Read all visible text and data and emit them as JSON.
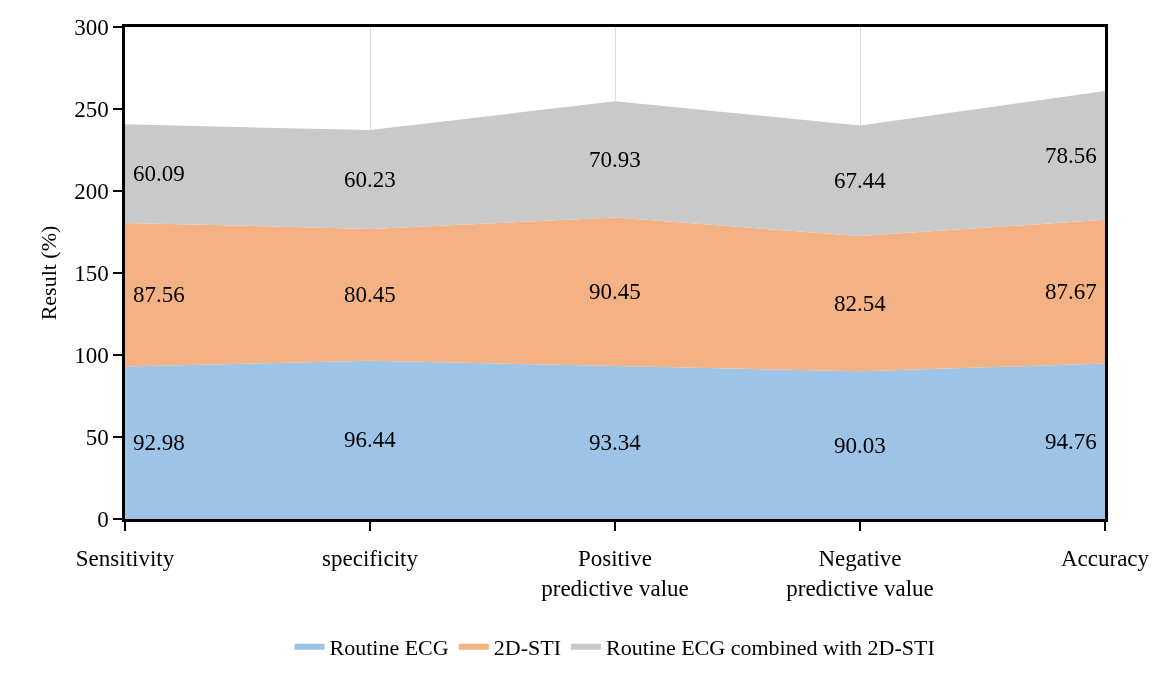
{
  "chart_data": {
    "type": "area",
    "ylabel": "Result (%)",
    "categories": [
      "Sensitivity",
      "specificity",
      "Positive predictive value",
      "Negative predictive value",
      "Accuracy"
    ],
    "series": [
      {
        "name": "Routine ECG",
        "color": "#9dc3e6",
        "values": [
          92.98,
          96.44,
          93.34,
          90.03,
          94.76
        ]
      },
      {
        "name": "2D-STI",
        "color": "#f4b183",
        "values": [
          87.56,
          80.45,
          90.45,
          82.54,
          87.67
        ]
      },
      {
        "name": "Routine ECG combined with 2D-STI",
        "color": "#c9c9c9",
        "values": [
          60.09,
          60.23,
          70.93,
          67.44,
          78.56
        ]
      }
    ],
    "stacked": true,
    "ylim": [
      0,
      300
    ],
    "yticks": [
      0,
      50,
      100,
      150,
      200,
      250,
      300
    ],
    "grid": "x",
    "legend": "bottom",
    "data_labels": true
  }
}
